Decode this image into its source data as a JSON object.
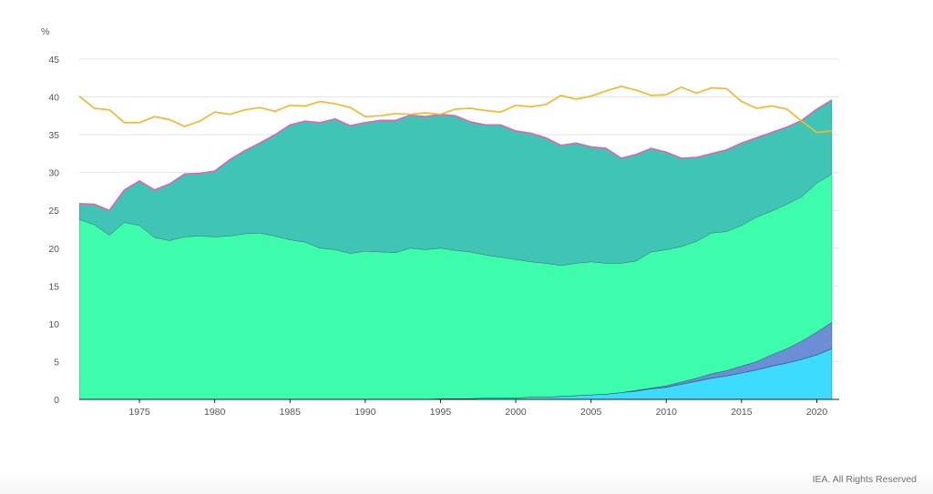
{
  "chart_data": {
    "type": "area",
    "ylabel": "%",
    "ylim": [
      0,
      45
    ],
    "y_ticks": [
      "0",
      "5",
      "10",
      "15",
      "20",
      "25",
      "30",
      "35",
      "40",
      "45"
    ],
    "x_ticks": [
      "1975",
      "1980",
      "1985",
      "1990",
      "1995",
      "2000",
      "2005",
      "2010",
      "2015",
      "2020"
    ],
    "xlim": [
      1971,
      2021
    ],
    "grid": true,
    "stacked": true,
    "x": [
      1971,
      1972,
      1973,
      1974,
      1975,
      1976,
      1977,
      1978,
      1979,
      1980,
      1981,
      1982,
      1983,
      1984,
      1985,
      1986,
      1987,
      1988,
      1989,
      1990,
      1991,
      1992,
      1993,
      1994,
      1995,
      1996,
      1997,
      1998,
      1999,
      2000,
      2001,
      2002,
      2003,
      2004,
      2005,
      2006,
      2007,
      2008,
      2009,
      2010,
      2011,
      2012,
      2013,
      2014,
      2015,
      2016,
      2017,
      2018,
      2019,
      2020,
      2021
    ],
    "series": [
      {
        "color": "#3ddcff",
        "values": [
          0,
          0,
          0,
          0,
          0,
          0,
          0,
          0,
          0,
          0,
          0,
          0,
          0,
          0,
          0,
          0,
          0,
          0,
          0,
          0,
          0,
          0,
          0,
          0,
          0.1,
          0.1,
          0.1,
          0.2,
          0.2,
          0.2,
          0.3,
          0.3,
          0.4,
          0.5,
          0.6,
          0.7,
          0.9,
          1.1,
          1.4,
          1.6,
          2.0,
          2.4,
          2.8,
          3.1,
          3.5,
          3.9,
          4.4,
          4.8,
          5.3,
          5.9,
          6.7
        ]
      },
      {
        "color": "#6b8ed6",
        "values": [
          0,
          0,
          0,
          0,
          0,
          0,
          0,
          0,
          0,
          0,
          0,
          0,
          0,
          0,
          0,
          0,
          0,
          0,
          0,
          0,
          0,
          0,
          0,
          0,
          0,
          0,
          0,
          0,
          0,
          0,
          0,
          0,
          0,
          0,
          0,
          0,
          0,
          0.1,
          0.1,
          0.2,
          0.3,
          0.4,
          0.6,
          0.7,
          0.9,
          1.1,
          1.5,
          1.9,
          2.4,
          3.0,
          3.5
        ]
      },
      {
        "color": "#3dfcab",
        "values": [
          23.8,
          23.1,
          21.7,
          23.4,
          23.0,
          21.4,
          21.0,
          21.5,
          21.6,
          21.5,
          21.6,
          21.9,
          22.0,
          21.6,
          21.1,
          20.8,
          20.0,
          19.8,
          19.3,
          19.6,
          19.5,
          19.4,
          20.0,
          19.8,
          19.9,
          19.6,
          19.4,
          18.9,
          18.6,
          18.3,
          17.9,
          17.7,
          17.3,
          17.5,
          17.6,
          17.3,
          17.1,
          17.1,
          18.0,
          18.0,
          17.9,
          18.1,
          18.6,
          18.4,
          18.6,
          19.1,
          19.0,
          19.1,
          19.1,
          19.7,
          19.6
        ]
      },
      {
        "color": "#3fc4b6",
        "values": [
          2.1,
          2.7,
          3.3,
          4.3,
          5.9,
          6.3,
          7.5,
          8.3,
          8.3,
          8.7,
          10.1,
          11.0,
          11.9,
          13.4,
          15.2,
          16.0,
          16.6,
          17.3,
          16.9,
          17.0,
          17.4,
          17.5,
          17.6,
          17.6,
          17.7,
          17.8,
          17.2,
          17.2,
          17.5,
          17.0,
          17.0,
          16.6,
          15.9,
          15.9,
          15.2,
          15.2,
          13.9,
          14.1,
          13.7,
          12.9,
          11.7,
          11.1,
          10.5,
          10.8,
          10.9,
          10.5,
          10.4,
          10.2,
          10.1,
          9.8,
          9.8
        ]
      }
    ],
    "outline": {
      "color": "#e064b4"
    },
    "lines": [
      {
        "color": "#f5b731",
        "values": [
          40.1,
          38.5,
          38.3,
          36.6,
          36.6,
          37.4,
          37.0,
          36.1,
          36.8,
          38.0,
          37.7,
          38.3,
          38.6,
          38.1,
          38.9,
          38.8,
          39.4,
          39.1,
          38.6,
          37.4,
          37.5,
          37.8,
          37.7,
          37.9,
          37.7,
          38.4,
          38.5,
          38.2,
          38.0,
          38.9,
          38.7,
          39.0,
          40.2,
          39.7,
          40.1,
          40.8,
          41.4,
          40.9,
          40.2,
          40.3,
          41.3,
          40.5,
          41.2,
          41.1,
          39.4,
          38.5,
          38.8,
          38.4,
          36.8,
          35.3,
          35.5
        ]
      }
    ]
  },
  "footer": {
    "credit": "IEA. All Rights Reserved"
  }
}
